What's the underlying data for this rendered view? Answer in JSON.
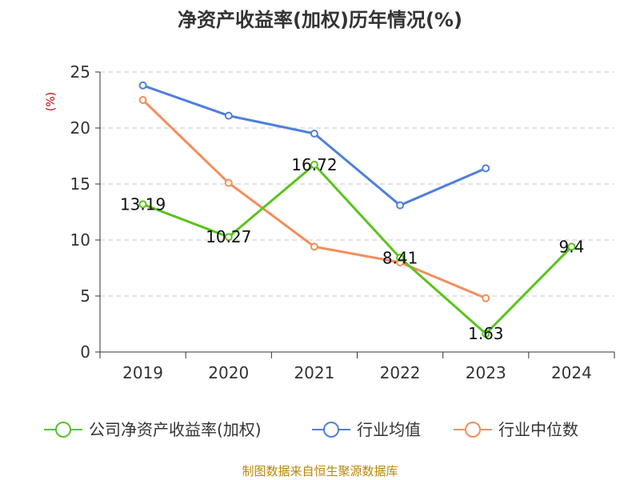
{
  "chart_data": {
    "type": "line",
    "title": "净资产收益率(加权)历年情况(%)",
    "ylabel": "(%)",
    "xlabel": "",
    "categories": [
      "2019",
      "2020",
      "2021",
      "2022",
      "2023",
      "2024"
    ],
    "ylim": [
      0,
      25
    ],
    "yticks": [
      0,
      5,
      10,
      15,
      20,
      25
    ],
    "grid": true,
    "legend_position": "bottom",
    "series": [
      {
        "name": "公司净资产收益率(加权)",
        "color": "#5ac31e",
        "values": [
          13.19,
          10.27,
          16.72,
          8.41,
          1.63,
          9.4
        ],
        "labels": [
          "13.19",
          "10.27",
          "16.72",
          "8.41",
          "1.63",
          "9.4"
        ]
      },
      {
        "name": "行业均值",
        "color": "#4f7fdb",
        "values": [
          23.8,
          21.1,
          19.5,
          13.1,
          16.4,
          null
        ]
      },
      {
        "name": "行业中位数",
        "color": "#f58d5c",
        "values": [
          22.5,
          15.1,
          9.4,
          8.0,
          4.8,
          null
        ]
      }
    ]
  },
  "source_text": "制图数据来自恒生聚源数据库"
}
